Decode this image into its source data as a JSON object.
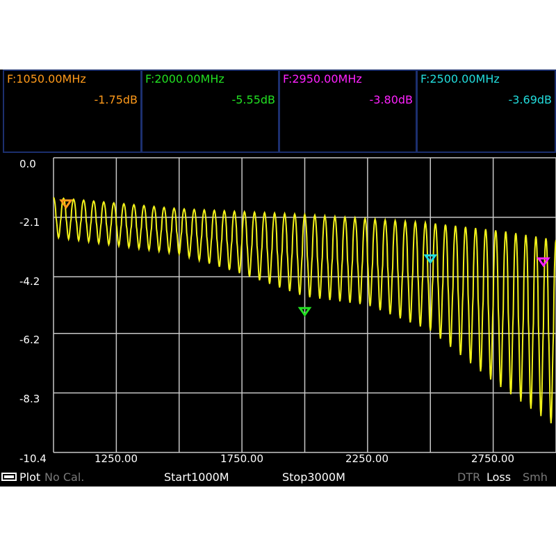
{
  "markers": [
    {
      "freq": "F:1050.00MHz",
      "value": "-1.75dB",
      "color": "#ff9a1a"
    },
    {
      "freq": "F:2000.00MHz",
      "value": "-5.55dB",
      "color": "#22e022"
    },
    {
      "freq": "F:2950.00MHz",
      "value": "-3.80dB",
      "color": "#ff22ff"
    },
    {
      "freq": "F:2500.00MHz",
      "value": "-3.69dB",
      "color": "#22dddd"
    }
  ],
  "status": {
    "plot_label": "Plot",
    "cal_label": "No Cal.",
    "start_label": "Start1000M",
    "stop_label": "Stop3000M",
    "dtr_label": "DTR",
    "mode_label": "Loss",
    "smith_label": "Smh"
  },
  "colors": {
    "trace": "#f2f21a",
    "grid": "#c8c8c8",
    "panel_border": "#1c2f6e",
    "dim_text": "#7a7a7a"
  },
  "chart_data": {
    "type": "line",
    "title": "",
    "xlabel": "",
    "ylabel": "",
    "xlim": [
      1000,
      3000
    ],
    "ylim": [
      -10.4,
      0.0
    ],
    "x_tick_labels": [
      "1250.00",
      "1750.00",
      "2250.00",
      "2750.00"
    ],
    "x_tick_values": [
      1250,
      1750,
      2250,
      2750
    ],
    "y_tick_labels": [
      "0.0",
      "-2.1",
      "-4.2",
      "-6.2",
      "-8.3",
      "-10.4"
    ],
    "y_tick_values": [
      0.0,
      -2.1,
      -4.2,
      -6.2,
      -8.3,
      -10.4
    ],
    "grid": true,
    "series": [
      {
        "x_start": 1000,
        "x_end": 3000,
        "ripple_period_mhz": 40,
        "upper_envelope": [
          [
            1000,
            -1.4
          ],
          [
            1500,
            -1.8
          ],
          [
            2000,
            -2.0
          ],
          [
            2500,
            -2.3
          ],
          [
            2800,
            -2.6
          ],
          [
            3000,
            -2.9
          ]
        ],
        "lower_envelope": [
          [
            1000,
            -2.8
          ],
          [
            1500,
            -3.4
          ],
          [
            1750,
            -4.1
          ],
          [
            2000,
            -4.9
          ],
          [
            2250,
            -5.2
          ],
          [
            2500,
            -6.1
          ],
          [
            2750,
            -7.9
          ],
          [
            3000,
            -9.5
          ]
        ]
      }
    ],
    "markers": [
      {
        "x": 1050,
        "y": -1.75,
        "color": "#ff9a1a"
      },
      {
        "x": 2000,
        "y": -5.55,
        "color": "#22e022"
      },
      {
        "x": 2950,
        "y": -3.8,
        "color": "#ff22ff"
      },
      {
        "x": 2500,
        "y": -3.69,
        "color": "#22dddd"
      }
    ]
  }
}
